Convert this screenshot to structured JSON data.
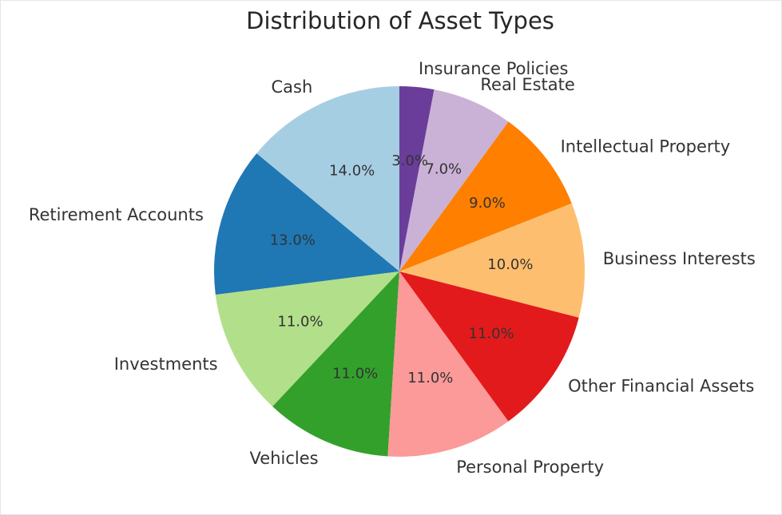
{
  "chart_data": {
    "type": "pie",
    "title": "Distribution of Asset Types",
    "start_angle_deg": 90,
    "direction": "counterclockwise",
    "categories": [
      "Cash",
      "Retirement Accounts",
      "Investments",
      "Vehicles",
      "Personal Property",
      "Other Financial Assets",
      "Business Interests",
      "Intellectual Property",
      "Real Estate",
      "Insurance Policies"
    ],
    "values": [
      14.0,
      13.0,
      11.0,
      11.0,
      11.0,
      11.0,
      10.0,
      9.0,
      7.0,
      3.0
    ],
    "value_labels": [
      "14.0%",
      "13.0%",
      "11.0%",
      "11.0%",
      "11.0%",
      "11.0%",
      "10.0%",
      "9.0%",
      "7.0%",
      "3.0%"
    ],
    "colors": [
      "#a6cee3",
      "#1f78b4",
      "#b2df8a",
      "#33a02c",
      "#fb9a99",
      "#e31a1c",
      "#fdbf6f",
      "#ff7f00",
      "#cab2d6",
      "#6a3d9a"
    ]
  }
}
